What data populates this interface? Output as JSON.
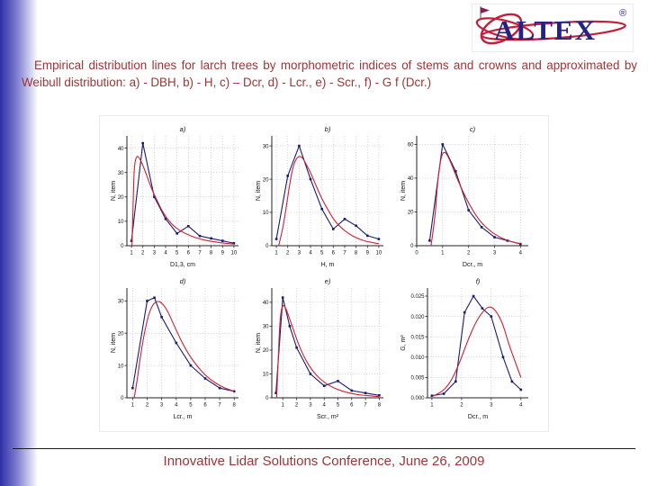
{
  "slide": {
    "title": "Empirical distribution lines for larch trees by morphometric indices of stems and crowns and approximated by Weibull distribution: a) - DBH, b) - H, c) – Dcr, d) - Lcr., e) - Scr., f) - G f (Dcr.)",
    "footer": "Innovative Lidar Solutions Conference, June 26, 2009"
  },
  "logo": {
    "text": "ALTEX",
    "registered": "®"
  },
  "colors": {
    "band": "#2f2fa6",
    "title_text": "#a13434",
    "footer_text": "#9e3434",
    "empirical_line": "#1b1b6e",
    "weibull_line": "#cf2030",
    "logo_text": "#232387",
    "logo_swirl": "#c41f3a"
  },
  "chart_data": [
    {
      "type": "line",
      "title": "a)",
      "xlabel": "D1,3, cm",
      "ylabel": "N, item",
      "xlim": [
        0.6,
        10.4
      ],
      "ylim": [
        0,
        45
      ],
      "xticks": [
        1,
        2,
        3,
        4,
        5,
        6,
        7,
        8,
        9,
        10
      ],
      "yticks": [
        0,
        10,
        20,
        30,
        40
      ],
      "grid": true,
      "series": [
        {
          "name": "empirical",
          "color": "#1b1b6e",
          "marker": "square",
          "smooth": false,
          "points": [
            [
              1,
              2
            ],
            [
              2,
              42
            ],
            [
              3,
              20
            ],
            [
              4,
              11
            ],
            [
              5,
              5
            ],
            [
              6,
              8
            ],
            [
              7,
              4
            ],
            [
              8,
              3
            ],
            [
              9,
              2
            ],
            [
              10,
              1
            ]
          ]
        },
        {
          "name": "Weibull",
          "color": "#cf2030",
          "marker": "none",
          "smooth": true,
          "points": [
            [
              1.05,
              0
            ],
            [
              1.15,
              20
            ],
            [
              1.25,
              33
            ],
            [
              1.45,
              37
            ],
            [
              1.7,
              36
            ],
            [
              2,
              33
            ],
            [
              2.4,
              28
            ],
            [
              2.8,
              23
            ],
            [
              3.2,
              19
            ],
            [
              3.6,
              15
            ],
            [
              4,
              12
            ],
            [
              4.5,
              9
            ],
            [
              5,
              7
            ],
            [
              5.5,
              5.5
            ],
            [
              6,
              4.5
            ],
            [
              6.5,
              3.5
            ],
            [
              7,
              2.8
            ],
            [
              7.5,
              2.2
            ],
            [
              8,
              1.8
            ],
            [
              8.5,
              1.4
            ],
            [
              9,
              1.1
            ],
            [
              9.5,
              0.9
            ],
            [
              10,
              0.7
            ]
          ]
        }
      ]
    },
    {
      "type": "line",
      "title": "b)",
      "xlabel": "H, m",
      "ylabel": "N, item",
      "xlim": [
        0.6,
        10.4
      ],
      "ylim": [
        0,
        33
      ],
      "xticks": [
        1,
        2,
        3,
        4,
        5,
        6,
        7,
        8,
        9,
        10
      ],
      "yticks": [
        0,
        10,
        20,
        30
      ],
      "grid": true,
      "series": [
        {
          "name": "empirical",
          "color": "#1b1b6e",
          "marker": "square",
          "smooth": false,
          "points": [
            [
              1,
              2
            ],
            [
              2,
              21
            ],
            [
              3,
              30
            ],
            [
              4,
              20
            ],
            [
              5,
              11
            ],
            [
              6,
              5
            ],
            [
              7,
              8
            ],
            [
              8,
              6
            ],
            [
              9,
              3
            ],
            [
              10,
              2
            ]
          ]
        },
        {
          "name": "Weibull",
          "color": "#cf2030",
          "marker": "none",
          "smooth": true,
          "points": [
            [
              1.2,
              0
            ],
            [
              1.5,
              4
            ],
            [
              1.8,
              10
            ],
            [
              2.1,
              17
            ],
            [
              2.4,
              23
            ],
            [
              2.7,
              26
            ],
            [
              3,
              27
            ],
            [
              3.3,
              26.5
            ],
            [
              3.7,
              24
            ],
            [
              4,
              22
            ],
            [
              4.5,
              18
            ],
            [
              5,
              14
            ],
            [
              5.5,
              11
            ],
            [
              6,
              8
            ],
            [
              6.5,
              6
            ],
            [
              7,
              4.5
            ],
            [
              7.5,
              3.3
            ],
            [
              8,
              2.4
            ],
            [
              8.5,
              1.7
            ],
            [
              9,
              1.2
            ],
            [
              9.5,
              0.9
            ],
            [
              10,
              0.6
            ]
          ]
        }
      ]
    },
    {
      "type": "line",
      "title": "c)",
      "xlabel": "Dcr., m",
      "ylabel": "N, item",
      "xlim": [
        0,
        4.3
      ],
      "ylim": [
        0,
        65
      ],
      "xticks": [
        0,
        1,
        2,
        3,
        4
      ],
      "yticks": [
        0,
        20,
        40,
        60
      ],
      "grid": true,
      "series": [
        {
          "name": "empirical",
          "color": "#1b1b6e",
          "marker": "square",
          "smooth": false,
          "points": [
            [
              0.5,
              3
            ],
            [
              1,
              60
            ],
            [
              1.5,
              44
            ],
            [
              2,
              21
            ],
            [
              2.5,
              11
            ],
            [
              3,
              5
            ],
            [
              3.5,
              3
            ],
            [
              4,
              1
            ]
          ]
        },
        {
          "name": "Weibull",
          "color": "#cf2030",
          "marker": "none",
          "smooth": true,
          "points": [
            [
              0.55,
              0
            ],
            [
              0.7,
              15
            ],
            [
              0.8,
              38
            ],
            [
              0.95,
              54
            ],
            [
              1.1,
              56
            ],
            [
              1.3,
              50
            ],
            [
              1.6,
              38
            ],
            [
              2,
              25
            ],
            [
              2.4,
              15
            ],
            [
              2.8,
              9
            ],
            [
              3.2,
              5
            ],
            [
              3.6,
              2.5
            ],
            [
              4,
              1.2
            ]
          ]
        }
      ]
    },
    {
      "type": "line",
      "title": "d)",
      "xlabel": "Lcr., m",
      "ylabel": "N, item",
      "xlim": [
        0.6,
        8.3
      ],
      "ylim": [
        0,
        34
      ],
      "xticks": [
        1,
        2,
        3,
        4,
        5,
        6,
        7,
        8
      ],
      "yticks": [
        0,
        10,
        20,
        30
      ],
      "grid": true,
      "series": [
        {
          "name": "empirical",
          "color": "#1b1b6e",
          "marker": "square",
          "smooth": false,
          "points": [
            [
              1,
              3
            ],
            [
              2,
              30
            ],
            [
              2.5,
              31
            ],
            [
              3,
              25
            ],
            [
              4,
              17
            ],
            [
              5,
              10
            ],
            [
              6,
              6
            ],
            [
              7,
              3
            ],
            [
              8,
              2
            ]
          ]
        },
        {
          "name": "Weibull",
          "color": "#cf2030",
          "marker": "none",
          "smooth": true,
          "points": [
            [
              1.1,
              0
            ],
            [
              1.3,
              5
            ],
            [
              1.5,
              12
            ],
            [
              1.8,
              20
            ],
            [
              2.1,
              26
            ],
            [
              2.4,
              29
            ],
            [
              2.7,
              30
            ],
            [
              3,
              29.5
            ],
            [
              3.4,
              27
            ],
            [
              3.8,
              23
            ],
            [
              4.2,
              19
            ],
            [
              4.6,
              15.5
            ],
            [
              5,
              12.5
            ],
            [
              5.5,
              9.5
            ],
            [
              6,
              7
            ],
            [
              6.5,
              5.2
            ],
            [
              7,
              3.8
            ],
            [
              7.5,
              2.8
            ],
            [
              8,
              2
            ]
          ]
        }
      ]
    },
    {
      "type": "line",
      "title": "e)",
      "xlabel": "Scr., m²",
      "ylabel": "N, item",
      "xlim": [
        0.2,
        8.3
      ],
      "ylim": [
        0,
        46
      ],
      "xticks": [
        1,
        2,
        3,
        4,
        5,
        6,
        7,
        8
      ],
      "yticks": [
        0,
        10,
        20,
        30,
        40
      ],
      "grid": true,
      "series": [
        {
          "name": "empirical",
          "color": "#1b1b6e",
          "marker": "square",
          "smooth": false,
          "points": [
            [
              0.5,
              2
            ],
            [
              1,
              42
            ],
            [
              1.5,
              30
            ],
            [
              2,
              21
            ],
            [
              3,
              10
            ],
            [
              4,
              5
            ],
            [
              5,
              7
            ],
            [
              6,
              3
            ],
            [
              7,
              2
            ],
            [
              8,
              1
            ]
          ]
        },
        {
          "name": "Weibull",
          "color": "#cf2030",
          "marker": "none",
          "smooth": true,
          "points": [
            [
              0.55,
              0
            ],
            [
              0.65,
              14
            ],
            [
              0.75,
              28
            ],
            [
              0.85,
              36
            ],
            [
              1,
              39
            ],
            [
              1.2,
              38
            ],
            [
              1.5,
              33
            ],
            [
              1.8,
              28
            ],
            [
              2.1,
              23
            ],
            [
              2.5,
              17.5
            ],
            [
              3,
              12.5
            ],
            [
              3.5,
              9
            ],
            [
              4,
              6.5
            ],
            [
              4.5,
              4.7
            ],
            [
              5,
              3.4
            ],
            [
              5.5,
              2.5
            ],
            [
              6,
              1.8
            ],
            [
              6.5,
              1.3
            ],
            [
              7,
              1
            ],
            [
              7.5,
              0.7
            ],
            [
              8,
              0.5
            ]
          ]
        }
      ]
    },
    {
      "type": "line",
      "title": "f)",
      "xlabel": "Dcr., m",
      "ylabel": "G, m²",
      "xlim": [
        0.85,
        4.25
      ],
      "ylim": [
        0,
        0.027
      ],
      "xticks": [
        1,
        2,
        3,
        4
      ],
      "yticks": [
        0,
        0.005,
        0.01,
        0.015,
        0.02,
        0.025
      ],
      "ytick_labels": [
        "0.000",
        "0.005",
        "0.010",
        "0.015",
        "0.020",
        "0.025"
      ],
      "grid": true,
      "series": [
        {
          "name": "empirical",
          "color": "#1b1b6e",
          "marker": "square",
          "smooth": false,
          "points": [
            [
              1,
              0.0005
            ],
            [
              1.4,
              0.001
            ],
            [
              1.8,
              0.004
            ],
            [
              2.1,
              0.021
            ],
            [
              2.4,
              0.025
            ],
            [
              2.7,
              0.022
            ],
            [
              3,
              0.02
            ],
            [
              3.4,
              0.01
            ],
            [
              3.7,
              0.004
            ],
            [
              4,
              0.002
            ]
          ]
        },
        {
          "name": "Weibull",
          "color": "#cf2030",
          "marker": "none",
          "smooth": true,
          "points": [
            [
              1,
              0.0003
            ],
            [
              1.3,
              0.0012
            ],
            [
              1.6,
              0.0035
            ],
            [
              1.9,
              0.008
            ],
            [
              2.2,
              0.014
            ],
            [
              2.5,
              0.019
            ],
            [
              2.8,
              0.022
            ],
            [
              3,
              0.0225
            ],
            [
              3.2,
              0.021
            ],
            [
              3.4,
              0.018
            ],
            [
              3.6,
              0.013
            ],
            [
              3.8,
              0.009
            ],
            [
              4,
              0.005
            ]
          ]
        }
      ]
    }
  ]
}
